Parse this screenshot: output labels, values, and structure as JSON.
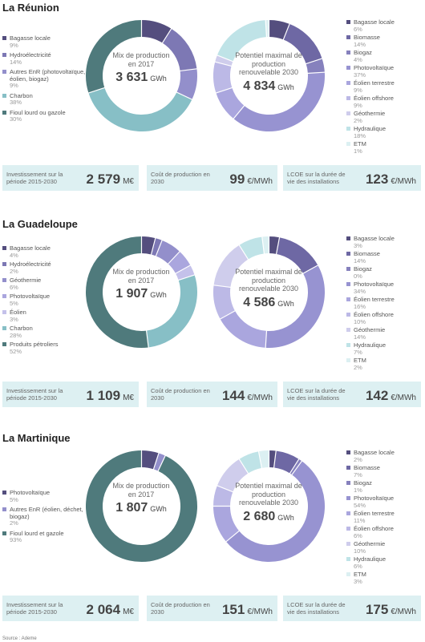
{
  "chart_data": [
    {
      "type": "pie",
      "region": "La Réunion",
      "mix": {
        "title": "Mix de production en 2017",
        "total": "3 631",
        "unit": "GWh",
        "series": [
          {
            "name": "Bagasse locale",
            "value": 9,
            "label": "9%",
            "color": "#544e7e"
          },
          {
            "name": "Hydroélectricité",
            "value": 14,
            "label": "14%",
            "color": "#7d78b4"
          },
          {
            "name": "Autres EnR (photovoltaïque, éolien, biogaz)",
            "value": 9,
            "label": "9%",
            "color": "#938fcb"
          },
          {
            "name": "Charbon",
            "value": 38,
            "label": "38%",
            "color": "#87bfc6"
          },
          {
            "name": "Fioul lourd ou gazole",
            "value": 30,
            "label": "30%",
            "color": "#4f7a7c"
          }
        ]
      },
      "potential": {
        "title": "Potentiel maximal de production renouvelable 2030",
        "total": "4 834",
        "unit": "GWh",
        "series": [
          {
            "name": "Bagasse locale",
            "value": 6,
            "label": "6%",
            "color": "#544e7e"
          },
          {
            "name": "Biomasse",
            "value": 14,
            "label": "14%",
            "color": "#6e68a4"
          },
          {
            "name": "Biogaz",
            "value": 4,
            "label": "4%",
            "color": "#8681bd"
          },
          {
            "name": "Photovoltaïque",
            "value": 37,
            "label": "37%",
            "color": "#9793d1"
          },
          {
            "name": "Éolien terrestre",
            "value": 9,
            "label": "9%",
            "color": "#aaa6de"
          },
          {
            "name": "Éolien offshore",
            "value": 9,
            "label": "9%",
            "color": "#bcb9e6"
          },
          {
            "name": "Géothermie",
            "value": 2,
            "label": "2%",
            "color": "#cfcdec"
          },
          {
            "name": "Hydraulique",
            "value": 18,
            "label": "18%",
            "color": "#bfe3e7"
          },
          {
            "name": "ETM",
            "value": 1,
            "label": "1%",
            "color": "#dcf0f2"
          }
        ]
      },
      "stats": [
        {
          "label": "Investissement sur la période 2015-2030",
          "value": "2 579",
          "unit": "M€"
        },
        {
          "label": "Coût de production en 2030",
          "value": "99",
          "unit": "€/MWh"
        },
        {
          "label": "LCOE sur la durée de vie des installations",
          "value": "123",
          "unit": "€/MWh"
        }
      ]
    },
    {
      "type": "pie",
      "region": "La Guadeloupe",
      "mix": {
        "title": "Mix de production en 2017",
        "total": "1 907",
        "unit": "GWh",
        "series": [
          {
            "name": "Bagasse locale",
            "value": 4,
            "label": "4%",
            "color": "#544e7e"
          },
          {
            "name": "Hydroélectricité",
            "value": 2,
            "label": "2%",
            "color": "#7d78b4"
          },
          {
            "name": "Géothermie",
            "value": 6,
            "label": "6%",
            "color": "#938fcb"
          },
          {
            "name": "Photovoltaïque",
            "value": 5,
            "label": "5%",
            "color": "#aaa6de"
          },
          {
            "name": "Éolien",
            "value": 3,
            "label": "3%",
            "color": "#c4c1ea"
          },
          {
            "name": "Charbon",
            "value": 28,
            "label": "28%",
            "color": "#87bfc6"
          },
          {
            "name": "Produits pétroliers",
            "value": 52,
            "label": "52%",
            "color": "#4f7a7c"
          }
        ]
      },
      "potential": {
        "title": "Potentiel maximal de production renouvelable 2030",
        "total": "4 586",
        "unit": "GWh",
        "series": [
          {
            "name": "Bagasse locale",
            "value": 3,
            "label": "3%",
            "color": "#544e7e"
          },
          {
            "name": "Biomasse",
            "value": 14,
            "label": "14%",
            "color": "#6e68a4"
          },
          {
            "name": "Biogaz",
            "value": 0,
            "label": "0%",
            "color": "#8681bd"
          },
          {
            "name": "Photovoltaïque",
            "value": 34,
            "label": "34%",
            "color": "#9793d1"
          },
          {
            "name": "Éolien terrestre",
            "value": 16,
            "label": "16%",
            "color": "#aaa6de"
          },
          {
            "name": "Éolien offshore",
            "value": 10,
            "label": "10%",
            "color": "#bcb9e6"
          },
          {
            "name": "Géothermie",
            "value": 14,
            "label": "14%",
            "color": "#cfcdec"
          },
          {
            "name": "Hydraulique",
            "value": 7,
            "label": "7%",
            "color": "#bfe3e7"
          },
          {
            "name": "ETM",
            "value": 2,
            "label": "2%",
            "color": "#dcf0f2"
          }
        ]
      },
      "stats": [
        {
          "label": "Investissement sur la période 2015-2030",
          "value": "1 109",
          "unit": "M€"
        },
        {
          "label": "Coût de production en 2030",
          "value": "144",
          "unit": "€/MWh"
        },
        {
          "label": "LCOE sur la durée de vie des installations",
          "value": "142",
          "unit": "€/MWh"
        }
      ]
    },
    {
      "type": "pie",
      "region": "La Martinique",
      "mix": {
        "title": "Mix de production en 2017",
        "total": "1 807",
        "unit": "GWh",
        "series": [
          {
            "name": "Photovoltaïque",
            "value": 5,
            "label": "5%",
            "color": "#544e7e"
          },
          {
            "name": "Autres EnR (éolien, déchet, biogaz)",
            "value": 2,
            "label": "2%",
            "color": "#938fcb"
          },
          {
            "name": "Fioul lourd et gazole",
            "value": 93,
            "label": "93%",
            "color": "#4f7a7c"
          }
        ]
      },
      "potential": {
        "title": "Potentiel maximal de production renouvelable 2030",
        "total": "2 680",
        "unit": "GWh",
        "series": [
          {
            "name": "Bagasse locale",
            "value": 2,
            "label": "2%",
            "color": "#544e7e"
          },
          {
            "name": "Biomasse",
            "value": 7,
            "label": "7%",
            "color": "#6e68a4"
          },
          {
            "name": "Biogaz",
            "value": 1,
            "label": "1%",
            "color": "#8681bd"
          },
          {
            "name": "Photovoltaïque",
            "value": 54,
            "label": "54%",
            "color": "#9793d1"
          },
          {
            "name": "Éolien terrestre",
            "value": 11,
            "label": "11%",
            "color": "#aaa6de"
          },
          {
            "name": "Éolien offshore",
            "value": 6,
            "label": "6%",
            "color": "#bcb9e6"
          },
          {
            "name": "Géothermie",
            "value": 10,
            "label": "10%",
            "color": "#cfcdec"
          },
          {
            "name": "Hydraulique",
            "value": 6,
            "label": "6%",
            "color": "#bfe3e7"
          },
          {
            "name": "ETM",
            "value": 3,
            "label": "3%",
            "color": "#dcf0f2"
          }
        ]
      },
      "stats": [
        {
          "label": "Investissement sur la période 2015-2030",
          "value": "2 064",
          "unit": "M€"
        },
        {
          "label": "Coût de production en 2030",
          "value": "151",
          "unit": "€/MWh"
        },
        {
          "label": "LCOE sur la durée de vie des installations",
          "value": "175",
          "unit": "€/MWh"
        }
      ]
    }
  ],
  "source": "Source : Ademe"
}
